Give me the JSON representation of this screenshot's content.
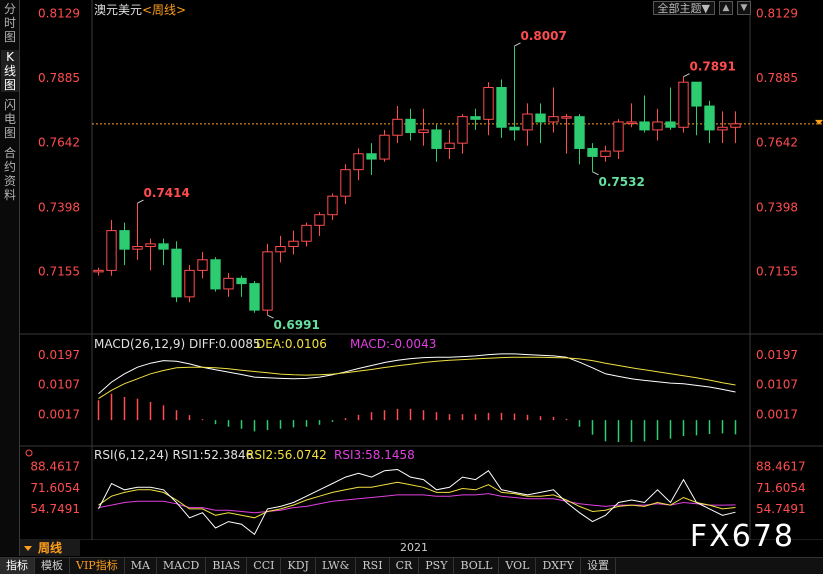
{
  "left_tabs": [
    "分时图",
    "K线图",
    "闪电图",
    "合约资料"
  ],
  "active_left_tab": 1,
  "top_controls": {
    "theme_label": "全部主题▼",
    "buttons": [
      "▲",
      "▼"
    ]
  },
  "period_label": "周线",
  "year_label": "2021",
  "watermark": "FX678",
  "bottom_tabs": [
    "指标",
    "模板",
    "VIP指标",
    "MA",
    "MACD",
    "BIAS",
    "CCI",
    "KDJ",
    "LW&",
    "RSI",
    "CR",
    "PSY",
    "BOLL",
    "VOL",
    "DXFY",
    "设置"
  ],
  "colors": {
    "up": "#ff4d4f",
    "down": "#2ecc71",
    "price_axis": "#ff4d4f",
    "macd_label": "#e0e0e0",
    "dea": "#f0e040",
    "macd_hist": "#e040e0",
    "rsi1": "#ffffff",
    "rsi2": "#f0e040",
    "rsi3": "#e040e0"
  },
  "chart_data": [
    {
      "type": "candlestick",
      "title": "澳元美元<周线>",
      "title_main": "澳元美元",
      "title_period": "<周线>",
      "y_ticks": [
        "0.8129",
        "0.7885",
        "0.7642",
        "0.7398",
        "0.7155"
      ],
      "y_range": [
        0.6935,
        0.815
      ],
      "current_price": 0.7713,
      "annotations": [
        {
          "index": 3,
          "value": 0.7414,
          "label": "0.7414",
          "kind": "high"
        },
        {
          "index": 13,
          "value": 0.6991,
          "label": "0.6991",
          "kind": "low"
        },
        {
          "index": 32,
          "value": 0.8007,
          "label": "0.8007",
          "kind": "high"
        },
        {
          "index": 38,
          "value": 0.7532,
          "label": "0.7532",
          "kind": "low"
        },
        {
          "index": 45,
          "value": 0.7891,
          "label": "0.7891",
          "kind": "high"
        }
      ],
      "candles": [
        [
          0.7155,
          0.716,
          0.717,
          0.714
        ],
        [
          0.716,
          0.731,
          0.735,
          0.714
        ],
        [
          0.731,
          0.724,
          0.734,
          0.718
        ],
        [
          0.724,
          0.725,
          0.7414,
          0.72
        ],
        [
          0.725,
          0.726,
          0.728,
          0.716
        ],
        [
          0.726,
          0.724,
          0.728,
          0.718
        ],
        [
          0.724,
          0.706,
          0.727,
          0.704
        ],
        [
          0.706,
          0.716,
          0.718,
          0.704
        ],
        [
          0.716,
          0.72,
          0.723,
          0.713
        ],
        [
          0.72,
          0.709,
          0.721,
          0.708
        ],
        [
          0.709,
          0.713,
          0.715,
          0.706
        ],
        [
          0.713,
          0.711,
          0.714,
          0.706
        ],
        [
          0.711,
          0.701,
          0.712,
          0.7
        ],
        [
          0.701,
          0.723,
          0.726,
          0.6991
        ],
        [
          0.723,
          0.725,
          0.729,
          0.719
        ],
        [
          0.725,
          0.727,
          0.731,
          0.722
        ],
        [
          0.727,
          0.733,
          0.734,
          0.725
        ],
        [
          0.733,
          0.737,
          0.738,
          0.729
        ],
        [
          0.737,
          0.744,
          0.745,
          0.735
        ],
        [
          0.744,
          0.754,
          0.756,
          0.741
        ],
        [
          0.754,
          0.76,
          0.762,
          0.75
        ],
        [
          0.76,
          0.758,
          0.764,
          0.752
        ],
        [
          0.758,
          0.767,
          0.769,
          0.757
        ],
        [
          0.767,
          0.773,
          0.778,
          0.764
        ],
        [
          0.773,
          0.768,
          0.777,
          0.765
        ],
        [
          0.768,
          0.769,
          0.777,
          0.763
        ],
        [
          0.769,
          0.762,
          0.771,
          0.757
        ],
        [
          0.762,
          0.764,
          0.769,
          0.758
        ],
        [
          0.764,
          0.774,
          0.775,
          0.76
        ],
        [
          0.774,
          0.773,
          0.777,
          0.769
        ],
        [
          0.773,
          0.785,
          0.787,
          0.767
        ],
        [
          0.785,
          0.77,
          0.788,
          0.766
        ],
        [
          0.77,
          0.769,
          0.8007,
          0.765
        ],
        [
          0.769,
          0.775,
          0.779,
          0.763
        ],
        [
          0.775,
          0.772,
          0.779,
          0.764
        ],
        [
          0.772,
          0.774,
          0.785,
          0.768
        ],
        [
          0.774,
          0.774,
          0.775,
          0.76
        ],
        [
          0.774,
          0.762,
          0.775,
          0.756
        ],
        [
          0.762,
          0.759,
          0.764,
          0.7532
        ],
        [
          0.759,
          0.761,
          0.763,
          0.757
        ],
        [
          0.761,
          0.772,
          0.773,
          0.758
        ],
        [
          0.772,
          0.772,
          0.779,
          0.77
        ],
        [
          0.772,
          0.769,
          0.782,
          0.768
        ],
        [
          0.769,
          0.772,
          0.777,
          0.765
        ],
        [
          0.772,
          0.77,
          0.785,
          0.769
        ],
        [
          0.77,
          0.787,
          0.7891,
          0.768
        ],
        [
          0.787,
          0.778,
          0.787,
          0.767
        ],
        [
          0.778,
          0.769,
          0.78,
          0.764
        ],
        [
          0.769,
          0.77,
          0.776,
          0.764
        ],
        [
          0.77,
          0.7713,
          0.776,
          0.764
        ]
      ]
    },
    {
      "type": "line",
      "title": "MACD(26,12,9)",
      "labels": {
        "diff": "DIFF:0.0085",
        "dea": "DEA:0.0106",
        "macd": "MACD:-0.0043"
      },
      "y_ticks": [
        "0.0197",
        "0.0107",
        "0.0017"
      ],
      "y_range": [
        -0.006,
        0.023
      ],
      "diff": [
        0.008,
        0.0115,
        0.014,
        0.016,
        0.0172,
        0.018,
        0.0178,
        0.017,
        0.016,
        0.0152,
        0.0145,
        0.0138,
        0.013,
        0.0128,
        0.0126,
        0.0125,
        0.0126,
        0.013,
        0.0137,
        0.0146,
        0.0156,
        0.0165,
        0.0174,
        0.0181,
        0.0186,
        0.0189,
        0.019,
        0.019,
        0.0192,
        0.0194,
        0.0198,
        0.02,
        0.02,
        0.0198,
        0.0196,
        0.0194,
        0.019,
        0.0175,
        0.0158,
        0.014,
        0.0132,
        0.0125,
        0.012,
        0.0116,
        0.0112,
        0.011,
        0.0105,
        0.01,
        0.0093,
        0.0085
      ],
      "dea": [
        0.0065,
        0.009,
        0.011,
        0.0125,
        0.014,
        0.015,
        0.0158,
        0.016,
        0.016,
        0.0158,
        0.0155,
        0.0151,
        0.0147,
        0.0143,
        0.0139,
        0.0137,
        0.0136,
        0.0137,
        0.0139,
        0.0143,
        0.0148,
        0.0153,
        0.0159,
        0.0164,
        0.0169,
        0.0174,
        0.0178,
        0.0181,
        0.0183,
        0.0185,
        0.0187,
        0.0189,
        0.019,
        0.019,
        0.019,
        0.0189,
        0.0188,
        0.0185,
        0.018,
        0.0172,
        0.0165,
        0.0158,
        0.0152,
        0.0146,
        0.014,
        0.0134,
        0.0128,
        0.0121,
        0.0113,
        0.0106
      ],
      "hist": [
        0.006,
        0.008,
        0.007,
        0.0065,
        0.0055,
        0.0045,
        0.003,
        0.0015,
        0.0003,
        -0.0012,
        -0.002,
        -0.0026,
        -0.0034,
        -0.003,
        -0.0026,
        -0.0022,
        -0.002,
        -0.0014,
        -0.0005,
        0.0006,
        0.0016,
        0.0024,
        0.003,
        0.0034,
        0.0034,
        0.003,
        0.0024,
        0.0018,
        0.0018,
        0.0018,
        0.0022,
        0.0022,
        0.002,
        0.0016,
        0.0012,
        0.001,
        0.0004,
        -0.002,
        -0.0044,
        -0.0064,
        -0.0066,
        -0.0066,
        -0.0064,
        -0.006,
        -0.0056,
        -0.0048,
        -0.0046,
        -0.0042,
        -0.004,
        -0.0043
      ]
    },
    {
      "type": "line",
      "title": "RSI(6,12,24)",
      "labels": {
        "rsi1": "RSI1:52.3846",
        "rsi2": "RSI2:56.0742",
        "rsi3": "RSI3:58.1458"
      },
      "y_ticks": [
        "88.4617",
        "71.6054",
        "54.7491"
      ],
      "y_range": [
        40,
        95
      ],
      "rsi1": [
        55,
        75,
        70,
        72,
        72,
        70,
        60,
        48,
        52,
        40,
        45,
        43,
        35,
        55,
        57,
        60,
        65,
        70,
        75,
        80,
        83,
        80,
        85,
        86,
        80,
        78,
        70,
        72,
        80,
        78,
        85,
        70,
        68,
        66,
        68,
        70,
        60,
        52,
        45,
        50,
        60,
        62,
        60,
        70,
        60,
        78,
        60,
        55,
        50,
        52.38
      ],
      "rsi2": [
        58,
        65,
        68,
        70,
        70,
        68,
        62,
        55,
        55,
        50,
        52,
        50,
        48,
        53,
        55,
        58,
        62,
        65,
        68,
        70,
        72,
        72,
        74,
        76,
        74,
        72,
        68,
        68,
        71,
        70,
        74,
        68,
        67,
        65,
        65,
        66,
        62,
        57,
        53,
        54,
        57,
        58,
        57,
        60,
        58,
        64,
        60,
        58,
        55,
        56.07
      ],
      "rsi3": [
        56,
        58,
        60,
        61,
        61,
        61,
        59,
        56,
        56,
        54,
        54,
        53,
        52,
        53,
        54,
        56,
        57,
        59,
        61,
        62,
        63,
        64,
        65,
        66,
        66,
        66,
        65,
        65,
        66,
        66,
        67,
        65,
        64,
        63,
        63,
        63,
        61,
        59,
        58,
        57,
        58,
        58,
        58,
        59,
        58,
        60,
        59,
        58,
        58,
        58.15
      ]
    }
  ]
}
